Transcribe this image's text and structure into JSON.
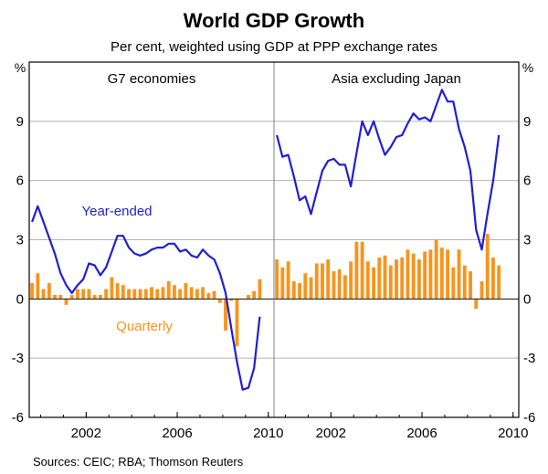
{
  "chart_data": {
    "type": "bar",
    "title": "World GDP Growth",
    "subtitle": "Per cent, weighted using GDP at PPP exchange rates",
    "source": "Sources: CEIC; RBA; Thomson Reuters",
    "y_unit_left": "%",
    "y_unit_right": "%",
    "ylim": [
      -6,
      12
    ],
    "y_ticks": [
      -6,
      -3,
      0,
      3,
      6,
      9
    ],
    "x_range": [
      1999.5,
      2010.25
    ],
    "x_ticks": [
      2002,
      2006,
      2010
    ],
    "panels": [
      {
        "name": "G7 economies",
        "series": [
          {
            "name": "Year-ended",
            "type": "line",
            "color": "#1f1fd6",
            "annotation": "Year-ended",
            "x": [
              1999.5,
              1999.75,
              2000,
              2000.25,
              2000.5,
              2000.75,
              2001,
              2001.25,
              2001.5,
              2001.75,
              2002,
              2002.25,
              2002.5,
              2002.75,
              2003,
              2003.25,
              2003.5,
              2003.75,
              2004,
              2004.25,
              2004.5,
              2004.75,
              2005,
              2005.25,
              2005.5,
              2005.75,
              2006,
              2006.25,
              2006.5,
              2006.75,
              2007,
              2007.25,
              2007.5,
              2007.75,
              2008,
              2008.25,
              2008.5,
              2008.75,
              2009,
              2009.25,
              2009.5
            ],
            "values": [
              3.9,
              4.7,
              3.9,
              3.1,
              2.3,
              1.3,
              0.7,
              0.3,
              0.7,
              1.0,
              1.8,
              1.7,
              1.2,
              1.6,
              2.4,
              3.2,
              3.2,
              2.6,
              2.3,
              2.2,
              2.3,
              2.5,
              2.6,
              2.6,
              2.8,
              2.8,
              2.4,
              2.5,
              2.2,
              2.1,
              2.5,
              2.2,
              2.0,
              1.3,
              0.3,
              -1.5,
              -3.2,
              -4.6,
              -4.5,
              -3.5,
              -0.9
            ]
          },
          {
            "name": "Quarterly",
            "type": "bar",
            "color": "#f7941d",
            "annotation": "Quarterly",
            "x": [
              1999.5,
              1999.75,
              2000,
              2000.25,
              2000.5,
              2000.75,
              2001,
              2001.25,
              2001.5,
              2001.75,
              2002,
              2002.25,
              2002.5,
              2002.75,
              2003,
              2003.25,
              2003.5,
              2003.75,
              2004,
              2004.25,
              2004.5,
              2004.75,
              2005,
              2005.25,
              2005.5,
              2005.75,
              2006,
              2006.25,
              2006.5,
              2006.75,
              2007,
              2007.25,
              2007.5,
              2007.75,
              2008,
              2008.25,
              2008.5,
              2008.75,
              2009,
              2009.25,
              2009.5
            ],
            "values": [
              0.8,
              1.3,
              0.5,
              0.8,
              0.2,
              0.2,
              -0.3,
              0.2,
              0.5,
              0.5,
              0.5,
              0.2,
              0.2,
              0.5,
              1.1,
              0.8,
              0.7,
              0.5,
              0.5,
              0.5,
              0.5,
              0.6,
              0.5,
              0.6,
              0.9,
              0.7,
              0.5,
              0.8,
              0.6,
              0.5,
              0.6,
              0.3,
              0.4,
              -0.2,
              -1.6,
              -0.1,
              -2.4,
              0.0,
              0.2,
              0.4,
              1.0
            ]
          }
        ]
      },
      {
        "name": "Asia excluding Japan",
        "series": [
          {
            "name": "Year-ended",
            "type": "line",
            "color": "#1f1fd6",
            "x": [
              1999.5,
              1999.75,
              2000,
              2000.25,
              2000.5,
              2000.75,
              2001,
              2001.25,
              2001.5,
              2001.75,
              2002,
              2002.25,
              2002.5,
              2002.75,
              2003,
              2003.25,
              2003.5,
              2003.75,
              2004,
              2004.25,
              2004.5,
              2004.75,
              2005,
              2005.25,
              2005.5,
              2005.75,
              2006,
              2006.25,
              2006.5,
              2006.75,
              2007,
              2007.25,
              2007.5,
              2007.75,
              2008,
              2008.25,
              2008.5,
              2008.75,
              2009,
              2009.25,
              2009.5
            ],
            "values": [
              8.3,
              7.2,
              7.3,
              6.2,
              5.0,
              5.2,
              4.3,
              5.4,
              6.5,
              7.0,
              7.1,
              6.8,
              6.8,
              5.7,
              7.4,
              9.0,
              8.3,
              9.0,
              8.1,
              7.3,
              7.7,
              8.2,
              8.3,
              8.9,
              9.4,
              9.1,
              9.2,
              9.0,
              9.8,
              10.6,
              10.0,
              10.0,
              8.6,
              7.7,
              6.5,
              3.5,
              2.5,
              4.3,
              6.0,
              8.3,
              null
            ]
          },
          {
            "name": "Quarterly",
            "type": "bar",
            "color": "#f7941d",
            "x": [
              1999.5,
              1999.75,
              2000,
              2000.25,
              2000.5,
              2000.75,
              2001,
              2001.25,
              2001.5,
              2001.75,
              2002,
              2002.25,
              2002.5,
              2002.75,
              2003,
              2003.25,
              2003.5,
              2003.75,
              2004,
              2004.25,
              2004.5,
              2004.75,
              2005,
              2005.25,
              2005.5,
              2005.75,
              2006,
              2006.25,
              2006.5,
              2006.75,
              2007,
              2007.25,
              2007.5,
              2007.75,
              2008,
              2008.25,
              2008.5,
              2008.75,
              2009,
              2009.25,
              2009.5
            ],
            "values": [
              2.0,
              1.6,
              1.9,
              0.9,
              0.8,
              1.3,
              1.1,
              1.8,
              1.8,
              2.0,
              1.4,
              1.5,
              1.2,
              1.9,
              2.9,
              2.9,
              1.9,
              1.6,
              2.1,
              2.2,
              1.7,
              2.0,
              2.1,
              2.5,
              2.3,
              2.0,
              2.4,
              2.5,
              3.0,
              2.6,
              2.5,
              1.6,
              2.5,
              1.7,
              1.4,
              -0.5,
              0.9,
              3.3,
              2.1,
              1.7,
              null
            ]
          }
        ]
      }
    ],
    "colors": {
      "line": "#1f1fd6",
      "bar": "#f7941d",
      "grid": "#b3b3b3",
      "frame": "#000000",
      "divider": "#808080"
    }
  }
}
